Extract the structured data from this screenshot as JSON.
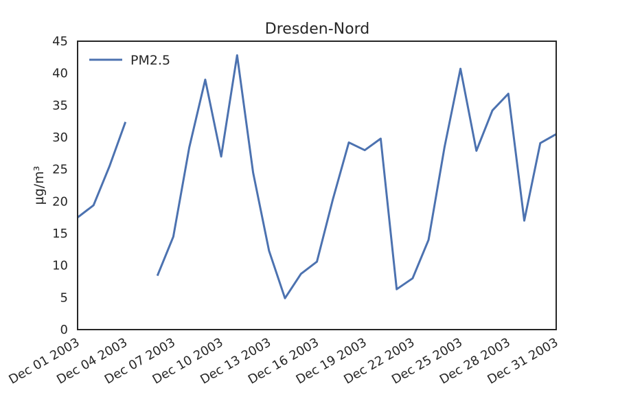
{
  "chart_data": {
    "type": "line",
    "title": "Dresden-Nord",
    "xlabel": "",
    "ylabel": "µg/m³",
    "ylim": [
      0,
      45
    ],
    "xlim": [
      "2003-12-01",
      "2003-12-31"
    ],
    "yticks": [
      "0",
      "5",
      "10",
      "15",
      "20",
      "25",
      "30",
      "35",
      "40",
      "45"
    ],
    "xticks": [
      {
        "date": "2003-12-01",
        "label": "Dec 01 2003"
      },
      {
        "date": "2003-12-04",
        "label": "Dec 04 2003"
      },
      {
        "date": "2003-12-07",
        "label": "Dec 07 2003"
      },
      {
        "date": "2003-12-10",
        "label": "Dec 10 2003"
      },
      {
        "date": "2003-12-13",
        "label": "Dec 13 2003"
      },
      {
        "date": "2003-12-16",
        "label": "Dec 16 2003"
      },
      {
        "date": "2003-12-19",
        "label": "Dec 19 2003"
      },
      {
        "date": "2003-12-22",
        "label": "Dec 22 2003"
      },
      {
        "date": "2003-12-25",
        "label": "Dec 25 2003"
      },
      {
        "date": "2003-12-28",
        "label": "Dec 28 2003"
      },
      {
        "date": "2003-12-31",
        "label": "Dec 31 2003"
      }
    ],
    "grid": false,
    "legend_position": "top-left",
    "colors": {
      "series": "#4c72b0",
      "axes": "#262626"
    },
    "series": [
      {
        "name": "PM2.5",
        "x": [
          "2003-12-01",
          "2003-12-02",
          "2003-12-03",
          "2003-12-04",
          "2003-12-05",
          "2003-12-06",
          "2003-12-07",
          "2003-12-08",
          "2003-12-09",
          "2003-12-10",
          "2003-12-11",
          "2003-12-12",
          "2003-12-13",
          "2003-12-14",
          "2003-12-15",
          "2003-12-16",
          "2003-12-17",
          "2003-12-18",
          "2003-12-19",
          "2003-12-20",
          "2003-12-21",
          "2003-12-22",
          "2003-12-23",
          "2003-12-24",
          "2003-12-25",
          "2003-12-26",
          "2003-12-27",
          "2003-12-28",
          "2003-12-29",
          "2003-12-30",
          "2003-12-31"
        ],
        "values": [
          17.5,
          19.4,
          25.5,
          32.4,
          null,
          8.4,
          14.5,
          28.4,
          39.0,
          27.0,
          42.8,
          24.5,
          12.3,
          4.9,
          8.7,
          10.6,
          20.3,
          29.2,
          28.0,
          29.8,
          6.3,
          8.0,
          14.0,
          28.5,
          40.7,
          27.9,
          34.2,
          36.8,
          17.0,
          29.1,
          30.5
        ]
      }
    ]
  }
}
